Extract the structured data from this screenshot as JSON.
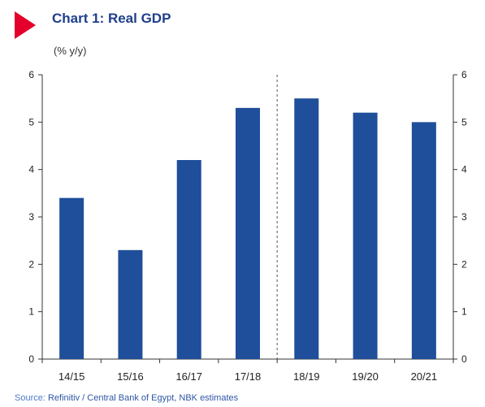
{
  "colors": {
    "bar": "#1f4e9a",
    "accent_marker": "#e4002b",
    "title": "#1f3f8c",
    "axis": "#333333"
  },
  "chart_data": {
    "type": "bar",
    "title": "Chart 1: Real GDP",
    "subtitle": "(% y/y)",
    "categories": [
      "14/15",
      "15/16",
      "16/17",
      "17/18",
      "18/19",
      "19/20",
      "20/21"
    ],
    "values": [
      3.4,
      2.3,
      4.2,
      5.3,
      5.5,
      5.2,
      5.0
    ],
    "ylim": [
      0,
      6
    ],
    "yticks": [
      "0",
      "1",
      "2",
      "3",
      "4",
      "5",
      "6"
    ],
    "y_right_axis": true,
    "forecast_divider_after": "17/18",
    "grid": false,
    "legend": "none",
    "source_label": "Source:",
    "source_text": "Refinitiv / Central Bank of Egypt, NBK estimates"
  }
}
